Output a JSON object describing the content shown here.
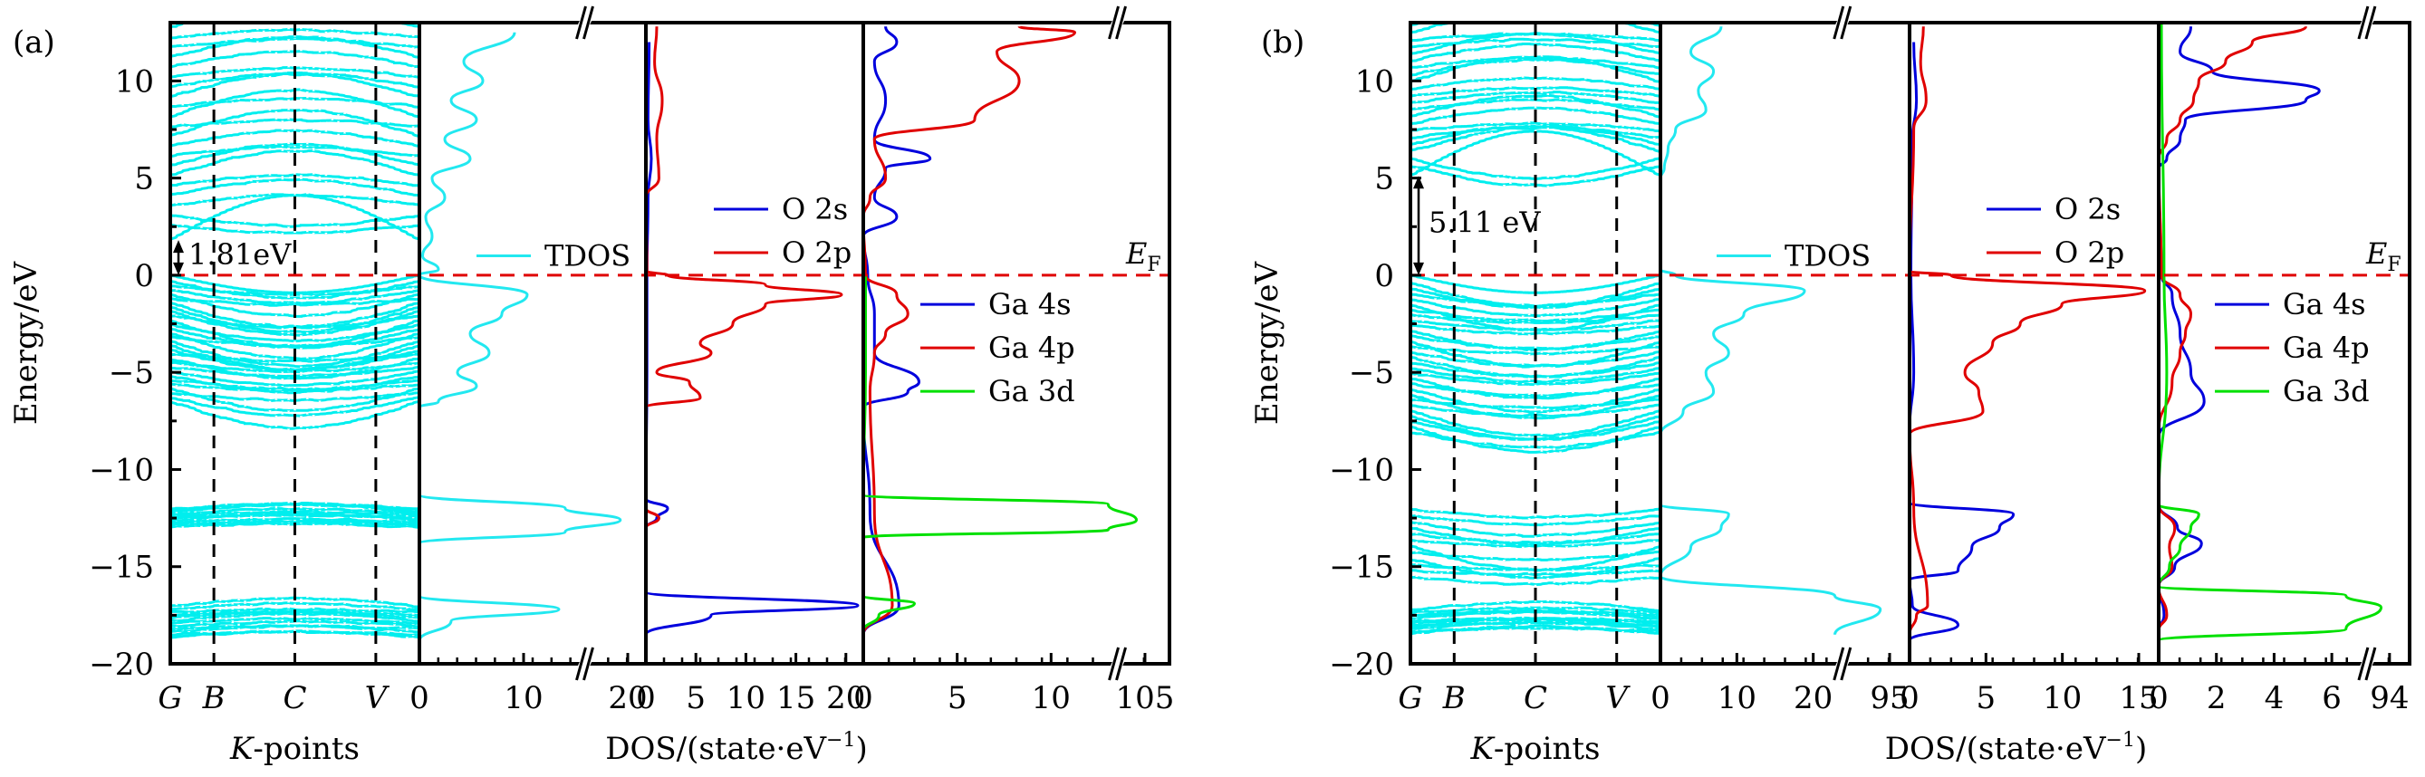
{
  "figure": {
    "colors": {
      "band": "#00eeee",
      "tdos": "#22e8f0",
      "s_orbital": "#0000dd",
      "p_orbital": "#e00000",
      "d_orbital": "#00e000",
      "fermi_line": "#e00000",
      "kpath_line": "#000000"
    },
    "ef_label": "E",
    "ef_subscript": "F"
  },
  "chart_data": [
    {
      "panel": "(a)",
      "type": "line",
      "subplots": [
        {
          "name": "band-structure",
          "xlabel": "K-points",
          "xlabel_italic_part": "K",
          "xlabel_rest": "-points",
          "ylabel": "Energy/eV",
          "ylim": [
            -20,
            13
          ],
          "yticks": [
            10,
            5,
            0,
            -5,
            -10,
            -15,
            -20
          ],
          "ytick_labels": [
            "10",
            "5",
            "0",
            "−5",
            "−10",
            "−15",
            "−20"
          ],
          "kpoints": [
            "G",
            "B",
            "C",
            "V"
          ],
          "kpoint_positions": [
            0,
            0.175,
            0.5,
            0.825
          ],
          "band_gap_label": "1.81eV",
          "band_gap": 1.81,
          "conduction_band_min": 1.81,
          "valence_band_max": 0,
          "band_groups": [
            {
              "region": "conduction",
              "range": [
                1.81,
                13
              ]
            },
            {
              "region": "valence",
              "range": [
                -6.6,
                0
              ]
            },
            {
              "region": "semicore",
              "range": [
                -13.0,
                -12.0
              ]
            },
            {
              "region": "deep",
              "range": [
                -18.7,
                -17.0
              ]
            }
          ]
        },
        {
          "name": "TDOS",
          "legend": [
            "TDOS"
          ],
          "xticks": [
            "0",
            "10",
            "20"
          ],
          "xlim_lower": [
            0,
            25
          ],
          "axis_break": true,
          "series": [
            {
              "name": "TDOS",
              "E": [
                12.5,
                11,
                10,
                9,
                8,
                7,
                6,
                5,
                4,
                3,
                2,
                1,
                0.3,
                0,
                -1,
                -2,
                -3,
                -4,
                -5,
                -5.7,
                -6.5,
                -6.8,
                -11.3,
                -12,
                -12.6,
                -13.2,
                -13.8,
                -16.5,
                -17.2,
                -17.8,
                -18.8
              ],
              "DOS": [
                15,
                7,
                10,
                5,
                9,
                4,
                8,
                2,
                4,
                1,
                2,
                0.5,
                3,
                0,
                17,
                13,
                8,
                11,
                6,
                9,
                3,
                0,
                0,
                23,
                35,
                23,
                0,
                0,
                22,
                5,
                0
              ]
            }
          ]
        },
        {
          "name": "O-PDOS",
          "legend": [
            "O 2s",
            "O 2p"
          ],
          "xticks": [
            "0",
            "5",
            "10",
            "15",
            "20"
          ],
          "xlim": [
            0,
            20
          ],
          "series": [
            {
              "name": "O 2s",
              "E": [
                12,
                8,
                6,
                4,
                0,
                -5,
                -11.5,
                -12,
                -12.5,
                -13,
                -16.3,
                -17.0,
                -17.5,
                -18.5
              ],
              "DOS": [
                0.3,
                0.2,
                0.5,
                0.2,
                0.1,
                0.1,
                0,
                2,
                1,
                0,
                0,
                19.5,
                6,
                0
              ]
            },
            {
              "name": "O 2p",
              "E": [
                12.8,
                11,
                9,
                7,
                5,
                4,
                0.2,
                0,
                -0.5,
                -1,
                -1.5,
                -2.5,
                -3.5,
                -4,
                -5,
                -5.5,
                -6.3,
                -6.8,
                -12,
                -12.5,
                -13
              ],
              "DOS": [
                1,
                0.8,
                1.5,
                1,
                1.2,
                0,
                0.1,
                2,
                11,
                18,
                11,
                8,
                5,
                6,
                1,
                4,
                5,
                0,
                0,
                1.2,
                0
              ]
            }
          ]
        },
        {
          "name": "Ga-PDOS",
          "legend": [
            "Ga 4s",
            "Ga 4p",
            "Ga 3d"
          ],
          "xticks": [
            "0",
            "5",
            "10",
            "105"
          ],
          "xlim_lower": [
            0,
            11
          ],
          "axis_break": true,
          "series": [
            {
              "name": "Ga 4s",
              "E": [
                12.8,
                12,
                11,
                9,
                7,
                6,
                5.5,
                4,
                3,
                2,
                0,
                -2,
                -4,
                -5.5,
                -6,
                -6.8,
                -12.3,
                -17,
                -18.5
              ],
              "DOS": [
                1,
                1.5,
                0.5,
                1,
                0.5,
                3,
                1,
                0.5,
                1.5,
                0,
                0.2,
                0.5,
                0.5,
                2.5,
                2,
                0,
                0.3,
                1.6,
                0
              ]
            },
            {
              "name": "Ga 4p",
              "E": [
                12.8,
                12.5,
                11.5,
                10,
                8,
                7,
                5,
                4,
                3,
                0,
                -1,
                -2,
                -3,
                -4,
                -6,
                -12.3,
                -17,
                -18.5
              ],
              "DOS": [
                7,
                9.5,
                6,
                7,
                5,
                0.5,
                1,
                0.3,
                0,
                0.1,
                1.5,
                2,
                1,
                0.5,
                0.3,
                0.5,
                1.3,
                0
              ]
            },
            {
              "name": "Ga 3d",
              "E": [
                0,
                -5,
                -11.3,
                -11.8,
                -12.6,
                -13.1,
                -13.5,
                -16.5,
                -16.9,
                -17.5,
                -18.3
              ],
              "DOS": [
                0.1,
                0.1,
                0,
                11,
                108,
                11,
                0,
                0,
                2.3,
                0.7,
                0
              ]
            }
          ]
        }
      ],
      "shared_xlabel": "DOS/(state·eV⁻¹)",
      "fermi_level": 0
    },
    {
      "panel": "(b)",
      "type": "line",
      "subplots": [
        {
          "name": "band-structure",
          "xlabel": "K-points",
          "xlabel_italic_part": "K",
          "xlabel_rest": "-points",
          "ylabel": "Energy/eV",
          "ylim": [
            -20,
            13
          ],
          "yticks": [
            10,
            5,
            0,
            -5,
            -10,
            -15,
            -20
          ],
          "ytick_labels": [
            "10",
            "5",
            "0",
            "−5",
            "−10",
            "−15",
            "−20"
          ],
          "kpoints": [
            "G",
            "B",
            "C",
            "V"
          ],
          "kpoint_positions": [
            0,
            0.175,
            0.5,
            0.825
          ],
          "band_gap_label": "5.11 eV",
          "band_gap": 5.11,
          "conduction_band_min": 5.11,
          "valence_band_max": 0,
          "band_groups": [
            {
              "region": "conduction",
              "range": [
                5.11,
                13
              ]
            },
            {
              "region": "valence",
              "range": [
                -8.2,
                0
              ]
            },
            {
              "region": "semicore",
              "range": [
                -15.7,
                -11.9
              ]
            },
            {
              "region": "deep",
              "range": [
                -18.5,
                -17.2
              ]
            }
          ]
        },
        {
          "name": "TDOS",
          "legend": [
            "TDOS"
          ],
          "xticks": [
            "0",
            "10",
            "20",
            "95"
          ],
          "xlim_lower": [
            0,
            23
          ],
          "axis_break": true,
          "series": [
            {
              "name": "TDOS",
              "E": [
                12.8,
                11.5,
                10.5,
                9.5,
                8.5,
                7.5,
                6.5,
                5.5,
                5,
                0.3,
                0,
                -0.8,
                -2,
                -3,
                -4,
                -5,
                -6,
                -7,
                -8.2,
                -11.8,
                -12.3,
                -13,
                -14,
                -15.5,
                -16.5,
                -17.2,
                -18.5
              ],
              "DOS": [
                8,
                4,
                7,
                5,
                6,
                2,
                1,
                0.5,
                0,
                0,
                2,
                19,
                11,
                7,
                9,
                6,
                7,
                3,
                0,
                0,
                9,
                8,
                4,
                0,
                23,
                97,
                23
              ]
            }
          ]
        },
        {
          "name": "O-PDOS",
          "legend": [
            "O 2s",
            "O 2p"
          ],
          "xticks": [
            "0",
            "5",
            "10",
            "15"
          ],
          "xlim": [
            0,
            18
          ],
          "series": [
            {
              "name": "O 2s",
              "E": [
                12,
                9,
                7,
                0,
                -5,
                -8,
                -11.7,
                -12.3,
                -13,
                -14,
                -15.2,
                -15.7,
                -17,
                -18,
                -18.8
              ],
              "DOS": [
                0.3,
                0.5,
                0.2,
                0.1,
                0.3,
                0,
                0,
                7.5,
                6.5,
                4.5,
                3.5,
                0,
                0.2,
                3.5,
                0
              ]
            },
            {
              "name": "O 2p",
              "E": [
                12.8,
                11,
                9,
                7.5,
                0.2,
                0,
                -0.8,
                -1.5,
                -2.5,
                -3.5,
                -5,
                -6,
                -7,
                -8.2,
                -12,
                -17,
                -17.5,
                -18.5
              ],
              "DOS": [
                1,
                0.8,
                1.2,
                0.3,
                0,
                3,
                17,
                11,
                8,
                6,
                4,
                5,
                5.3,
                0,
                0.3,
                1.3,
                0.5,
                0
              ]
            }
          ]
        },
        {
          "name": "Ga-PDOS",
          "legend": [
            "Ga 4s",
            "Ga 4p",
            "Ga 3d"
          ],
          "xticks": [
            "0",
            "2",
            "4",
            "6",
            "94"
          ],
          "xlim_lower": [
            0,
            7.5
          ],
          "axis_break": true,
          "series": [
            {
              "name": "Ga 4s",
              "E": [
                12.8,
                11.5,
                10.5,
                9.5,
                9,
                8,
                7,
                6,
                5.5,
                0,
                -1,
                -3,
                -5,
                -6.5,
                -8.3,
                -11.8,
                -13,
                -13.8,
                -15,
                -16,
                -17.5,
                -18.3
              ],
              "DOS": [
                1.2,
                0.8,
                2,
                6,
                5.5,
                1,
                0.8,
                0.3,
                0,
                0.1,
                0.5,
                0.8,
                1.2,
                1.7,
                0,
                0,
                0.7,
                1.6,
                0.6,
                0,
                0.2,
                0
              ]
            },
            {
              "name": "Ga 4p",
              "E": [
                12.8,
                12,
                11,
                10,
                9,
                8,
                7,
                6,
                0,
                -1,
                -2,
                -3,
                -4,
                -5.5,
                -8,
                -11.8,
                -13,
                -14,
                -15,
                -16,
                -17.5,
                -18.3
              ],
              "DOS": [
                5.5,
                3.5,
                2.5,
                1.5,
                1.3,
                0.8,
                0.3,
                0,
                0.1,
                0.8,
                1.2,
                1,
                0.8,
                0.5,
                0,
                0,
                0.6,
                0.4,
                0.5,
                0,
                0.3,
                0
              ]
            },
            {
              "name": "Ga 3d",
              "E": [
                13,
                0,
                -5,
                -11.8,
                -12.3,
                -13,
                -14,
                -15,
                -16,
                -16.5,
                -17.1,
                -18.2,
                -18.8
              ],
              "DOS": [
                0.1,
                0.2,
                0.3,
                0,
                1.5,
                1.2,
                0.8,
                0.4,
                0,
                7,
                94,
                7,
                0
              ]
            }
          ]
        }
      ],
      "shared_xlabel": "DOS/(state·eV⁻¹)",
      "fermi_level": 0
    }
  ],
  "labels": {
    "panel_a": "(a)",
    "panel_b": "(b)",
    "ylabel": "Energy/eV",
    "kpoints_axis_italic": "K",
    "kpoints_axis_rest": "-points",
    "dos_axis_label": "DOS/(state·eV",
    "dos_axis_superscript": "−1",
    "dos_axis_close": ")",
    "gap_a": "1.81eV",
    "gap_b": "5.11 eV",
    "legend_tdos": "TDOS",
    "legend_o2s": "O 2s",
    "legend_o2p": "O 2p",
    "legend_ga4s": "Ga 4s",
    "legend_ga4p": "Ga 4p",
    "legend_ga3d": "Ga 3d"
  }
}
